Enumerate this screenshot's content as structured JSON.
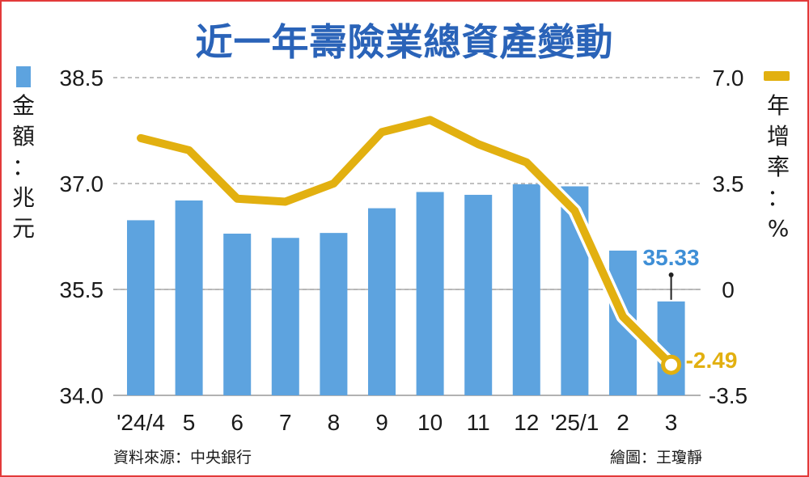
{
  "chart_data": {
    "type": "bar+line",
    "title": "近一年壽險業總資產變動",
    "categories": [
      "'24/4",
      "5",
      "6",
      "7",
      "8",
      "9",
      "10",
      "11",
      "12",
      "'25/1",
      "2",
      "3"
    ],
    "series": [
      {
        "name": "金額：兆元",
        "type": "bar",
        "axis": "left",
        "color": "#5da3df",
        "values": [
          36.48,
          36.76,
          36.29,
          36.23,
          36.3,
          36.65,
          36.88,
          36.84,
          36.99,
          36.96,
          36.05,
          35.33
        ]
      },
      {
        "name": "年增率：%",
        "type": "line",
        "axis": "right",
        "color": "#e2b010",
        "values": [
          5.0,
          4.6,
          3.0,
          2.9,
          3.5,
          5.2,
          5.6,
          4.8,
          4.2,
          2.6,
          -0.9,
          -2.49
        ]
      }
    ],
    "left_axis": {
      "label": "金額：兆元",
      "ticks": [
        "38.5",
        "37.0",
        "35.5",
        "34.0"
      ],
      "ylim": [
        34.0,
        38.5
      ]
    },
    "right_axis": {
      "label": "年增率：%",
      "ticks": [
        "7.0",
        "3.5",
        "0",
        "-3.5"
      ],
      "ylim": [
        -3.5,
        7.0
      ]
    },
    "annotations": {
      "bar_last": "35.33",
      "line_last": "-2.49"
    },
    "grid": "dashed horizontal",
    "legend": "top-left and top-right"
  },
  "footer": {
    "source": "資料來源：中央銀行",
    "credit": "繪圖：王瓊靜"
  }
}
